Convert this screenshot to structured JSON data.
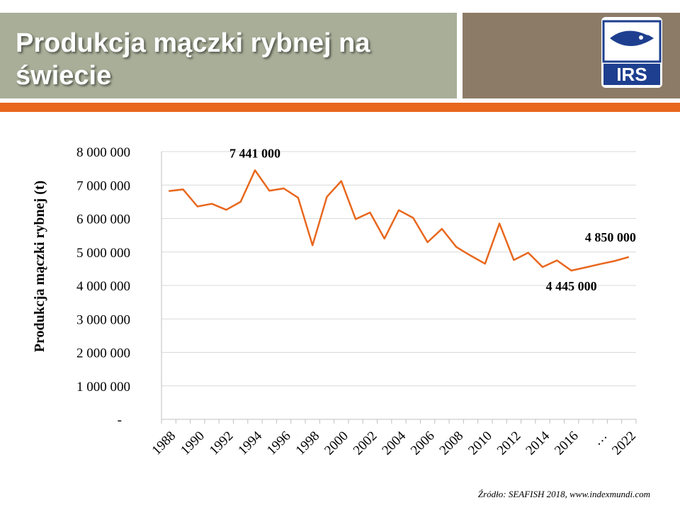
{
  "header": {
    "title": "Produkcja mączki rybnej na świecie",
    "logo_text": "IRS",
    "colors": {
      "title_band": "#a8ae98",
      "logo_band": "#8c7b67",
      "accent_bar": "#e8671d",
      "logo_blue": "#1e3f8f"
    }
  },
  "source": "Źródło: SEAFISH 2018, www.indexmundi.com",
  "chart_data": {
    "type": "line",
    "title": "",
    "xlabel": "",
    "ylabel": "Produkcja mączki rybnej (t)",
    "ylim": [
      0,
      8000000
    ],
    "yticks": [
      {
        "value": 0,
        "label": "-"
      },
      {
        "value": 1000000,
        "label": "1 000 000"
      },
      {
        "value": 2000000,
        "label": "2 000 000"
      },
      {
        "value": 3000000,
        "label": "3 000 000"
      },
      {
        "value": 4000000,
        "label": "4 000 000"
      },
      {
        "value": 5000000,
        "label": "5 000 000"
      },
      {
        "value": 6000000,
        "label": "6 000 000"
      },
      {
        "value": 7000000,
        "label": "7 000 000"
      },
      {
        "value": 8000000,
        "label": "8 000 000"
      }
    ],
    "grid": true,
    "line_color": "#e8671d",
    "categories": [
      "1988",
      "1989",
      "1990",
      "1991",
      "1992",
      "1993",
      "1994",
      "1995",
      "1996",
      "1997",
      "1998",
      "1999",
      "2000",
      "2001",
      "2002",
      "2003",
      "2004",
      "2005",
      "2006",
      "2007",
      "2008",
      "2009",
      "2010",
      "2011",
      "2012",
      "2013",
      "2014",
      "2015",
      "2016",
      "2017",
      "…",
      "2021",
      "2022"
    ],
    "tick_labels": [
      "1988",
      "1990",
      "1992",
      "1994",
      "1996",
      "1998",
      "2000",
      "2002",
      "2004",
      "2006",
      "2008",
      "2010",
      "2012",
      "2014",
      "2016",
      "…",
      "2022"
    ],
    "tick_label_indices": [
      0,
      2,
      4,
      6,
      8,
      10,
      12,
      14,
      16,
      18,
      20,
      22,
      24,
      26,
      28,
      30,
      32
    ],
    "values": [
      6820000,
      6870000,
      6360000,
      6440000,
      6260000,
      6500000,
      7441000,
      6830000,
      6900000,
      6620000,
      5200000,
      6650000,
      7120000,
      5980000,
      6180000,
      5400000,
      6250000,
      6020000,
      5290000,
      5690000,
      5150000,
      4890000,
      4650000,
      5850000,
      4760000,
      4980000,
      4550000,
      4750000,
      4445000,
      4540000,
      4640000,
      4730000,
      4850000
    ],
    "annotations": [
      {
        "index": 6,
        "label": "7 441 000",
        "value": 7441000
      },
      {
        "index": 28,
        "label": "4 445 000",
        "value": 4445000
      },
      {
        "index": 32,
        "label": "4 850 000",
        "value": 4850000
      }
    ]
  }
}
